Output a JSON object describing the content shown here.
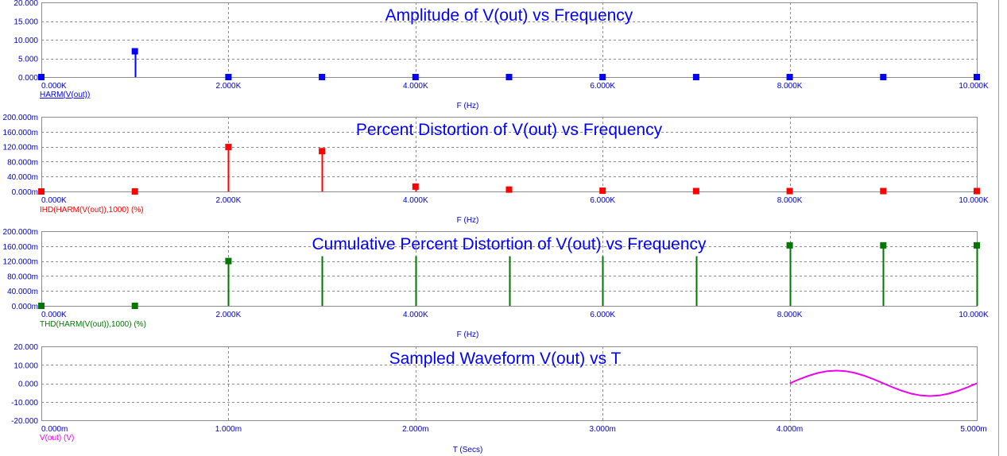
{
  "colors": {
    "axis_text": "#0000cc",
    "grid": "#8c8c8c",
    "panel_1": "#0000ff",
    "panel_2": "#ff0000",
    "panel_3": "#007700",
    "panel_4": "#ee00ee"
  },
  "chart_data": [
    {
      "type": "bar",
      "title": "Amplitude of V(out) vs Frequency",
      "xlabel": "F (Hz)",
      "ylabel": "",
      "legend": "HARM(V(out))",
      "x_ticks": [
        "0.000K",
        "2.000K",
        "4.000K",
        "6.000K",
        "8.000K",
        "10.000K"
      ],
      "y_ticks": [
        "0.000",
        "5.000",
        "10.000",
        "15.000",
        "20.000"
      ],
      "xlim": [
        0,
        10000
      ],
      "ylim": [
        0,
        20
      ],
      "grid": true,
      "marker": "square",
      "x": [
        0,
        1000,
        2000,
        3000,
        4000,
        5000,
        6000,
        7000,
        8000,
        9000,
        10000
      ],
      "values": [
        0,
        6.9,
        0,
        0,
        0,
        0,
        0,
        0,
        0,
        0,
        0
      ]
    },
    {
      "type": "bar",
      "title": "Percent Distortion of V(out) vs Frequency",
      "xlabel": "F (Hz)",
      "ylabel": "",
      "legend": "IHD(HARM(V(out)),1000) (%)",
      "x_ticks": [
        "0.000K",
        "2.000K",
        "4.000K",
        "6.000K",
        "8.000K",
        "10.000K"
      ],
      "y_ticks": [
        "0.000m",
        "40.000m",
        "80.000m",
        "120.000m",
        "160.000m",
        "200.000m"
      ],
      "xlim": [
        0,
        10000
      ],
      "ylim": [
        0,
        0.2
      ],
      "grid": true,
      "marker": "square",
      "x": [
        0,
        1000,
        2000,
        3000,
        4000,
        5000,
        6000,
        7000,
        8000,
        9000,
        10000
      ],
      "values": [
        0,
        0,
        0.119,
        0.108,
        0.013,
        0.005,
        0.002,
        0.001,
        0.001,
        0.001,
        0.001
      ]
    },
    {
      "type": "bar",
      "title": "Cumulative Percent Distortion of V(out) vs Frequency",
      "xlabel": "F (Hz)",
      "ylabel": "",
      "legend": "THD(HARM(V(out)),1000) (%)",
      "x_ticks": [
        "0.000K",
        "2.000K",
        "4.000K",
        "6.000K",
        "8.000K",
        "10.000K"
      ],
      "y_ticks": [
        "0.000m",
        "40.000m",
        "80.000m",
        "120.000m",
        "160.000m",
        "200.000m"
      ],
      "xlim": [
        0,
        10000
      ],
      "ylim": [
        0,
        0.2
      ],
      "grid": true,
      "stems": {
        "x": [
          0,
          1000,
          2000,
          3000,
          4000,
          5000,
          6000,
          7000,
          8000,
          9000,
          10000
        ],
        "values": [
          0,
          0,
          0.12,
          0.133,
          0.133,
          0.133,
          0.133,
          0.133,
          0.162,
          0.162,
          0.162
        ]
      },
      "markers": {
        "x": [
          0,
          1000,
          2000,
          8000,
          9000,
          10000
        ],
        "values": [
          0,
          0,
          0.12,
          0.162,
          0.162,
          0.162
        ]
      }
    },
    {
      "type": "line",
      "title": "Sampled Waveform  V(out) vs T",
      "xlabel": "T (Secs)",
      "ylabel": "",
      "legend": "V(out) (V)",
      "x_ticks": [
        "0.000m",
        "1.000m",
        "2.000m",
        "3.000m",
        "4.000m",
        "5.000m"
      ],
      "y_ticks": [
        "-20.000",
        "-10.000",
        "0.000",
        "10.000",
        "20.000"
      ],
      "xlim": [
        0,
        0.005
      ],
      "ylim": [
        -20,
        20
      ],
      "grid": true,
      "x": [
        0.004,
        0.00405,
        0.0041,
        0.00415,
        0.0042,
        0.00425,
        0.0043,
        0.00435,
        0.0044,
        0.00445,
        0.0045,
        0.00455,
        0.0046,
        0.00465,
        0.0047,
        0.00475,
        0.0048,
        0.00485,
        0.0049,
        0.00495,
        0.005
      ],
      "values": [
        0,
        2.13,
        4.06,
        5.58,
        6.56,
        6.9,
        6.56,
        5.58,
        4.06,
        2.13,
        0,
        -2.13,
        -4.06,
        -5.58,
        -6.56,
        -6.9,
        -6.56,
        -5.58,
        -4.06,
        -2.13,
        0
      ]
    }
  ]
}
